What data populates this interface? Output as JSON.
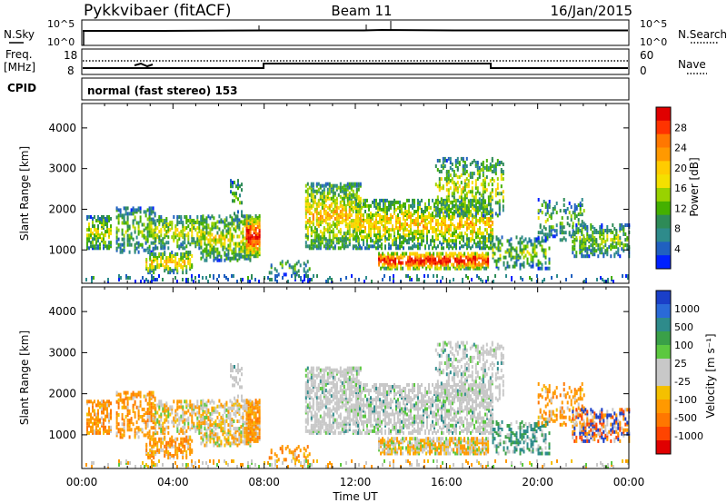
{
  "header": {
    "radar": "Pykkvibaer (fitACF)",
    "beam": "Beam 11",
    "date": "16/Jan/2015"
  },
  "status_panels": {
    "nsky_label": "N.Sky",
    "nsky_ticks": [
      "10^5",
      "10^0"
    ],
    "nsearch_label": "N.Search",
    "nsearch_ticks": [
      "10^5",
      "10^0"
    ],
    "freq_label_line1": "Freq.",
    "freq_label_line2": "[MHz]",
    "freq_ticks": [
      "18",
      "8"
    ],
    "nave_label": "Nave",
    "nave_ticks": [
      "60",
      "0"
    ],
    "cpid_label": "CPID",
    "cpid_text": "normal (fast stereo) 153"
  },
  "chart_data": [
    {
      "type": "heatmap",
      "name": "power",
      "ylabel": "Slant Range [km]",
      "yticks": [
        1000,
        2000,
        3000,
        4000
      ],
      "ylim": [
        180,
        4600
      ],
      "xlim": [
        0,
        24
      ],
      "colorbar": {
        "label": "Power [dB]",
        "ticks": [
          "28",
          "24",
          "20",
          "16",
          "12",
          "8",
          "4"
        ],
        "colors": [
          "#e00000",
          "#ff3300",
          "#ff7700",
          "#ff9900",
          "#ffcc00",
          "#f4e000",
          "#99d200",
          "#44b000",
          "#2e8b57",
          "#2e8b8b",
          "#2060c0",
          "#0020ff"
        ]
      }
    },
    {
      "type": "heatmap",
      "name": "velocity",
      "ylabel": "Slant Range [km]",
      "yticks": [
        1000,
        2000,
        3000,
        4000
      ],
      "ylim": [
        180,
        4600
      ],
      "xlim": [
        0,
        24
      ],
      "xticks": [
        "00:00",
        "04:00",
        "08:00",
        "12:00",
        "16:00",
        "20:00",
        "00:00"
      ],
      "xlabel": "Time UT",
      "colorbar": {
        "label": "Velocity [m s⁻¹]",
        "ticks": [
          "1000",
          "500",
          "100",
          "25",
          "-25",
          "-100",
          "-500",
          "-1000"
        ],
        "colors": [
          "#1a3fc8",
          "#2a6ad8",
          "#2e8b8b",
          "#3aa048",
          "#5cc840",
          "#c8c8c8",
          "#c8c8c8",
          "#f4c000",
          "#ff9900",
          "#ff7700",
          "#ff4400",
          "#e00000"
        ]
      }
    }
  ]
}
